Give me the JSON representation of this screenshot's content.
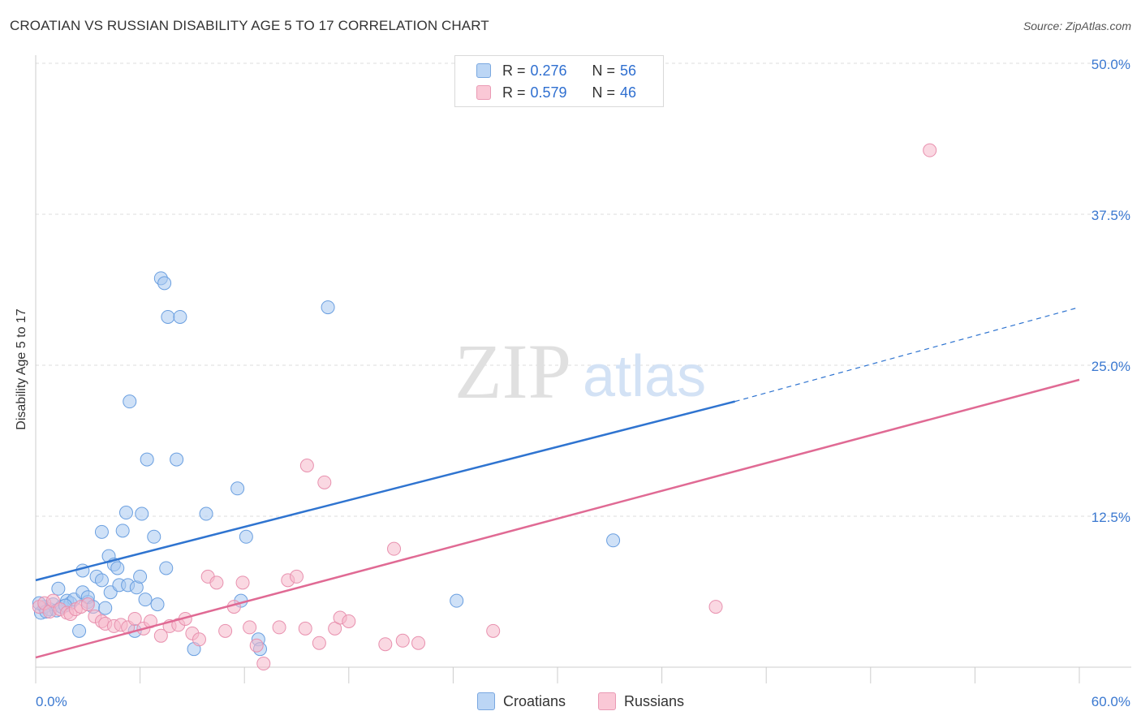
{
  "title": "CROATIAN VS RUSSIAN DISABILITY AGE 5 TO 17 CORRELATION CHART",
  "source": "Source: ZipAtlas.com",
  "watermark": {
    "zip": "ZIP",
    "atlas": "atlas"
  },
  "legend": {
    "r_label": "R = ",
    "n_label": "N = ",
    "croatians": {
      "r": "0.276",
      "n": "56"
    },
    "russians": {
      "r": "0.579",
      "n": "46"
    }
  },
  "colors": {
    "croatians_fill": "#a8c8f0",
    "croatians_line": "#2f74d0",
    "russians_fill": "#f5b8cb",
    "russians_line": "#e06a94",
    "axis_text": "#3a78d0",
    "grid": "#dddddd"
  },
  "chart_data": {
    "type": "scatter",
    "title": "CROATIAN VS RUSSIAN DISABILITY AGE 5 TO 17 CORRELATION CHART",
    "xlabel": "",
    "ylabel": "Disability Age 5 to 17",
    "xlim": [
      0,
      60
    ],
    "ylim": [
      0,
      50
    ],
    "x_tick_labels": [
      "0.0%",
      "60.0%"
    ],
    "y_ticks": [
      12.5,
      25.0,
      37.5,
      50.0
    ],
    "y_tick_labels": [
      "12.5%",
      "25.0%",
      "37.5%",
      "50.0%"
    ],
    "grid": true,
    "legend_position": "top-center",
    "series": [
      {
        "name": "Croatians",
        "color": "#a8c8f0",
        "trend": {
          "x": [
            0,
            40.2
          ],
          "y": [
            7.2,
            22.0
          ],
          "dashed_to": [
            60,
            29.8
          ]
        },
        "points": [
          [
            0.3,
            4.5
          ],
          [
            0.5,
            5.0
          ],
          [
            0.8,
            4.8
          ],
          [
            1.0,
            5.2
          ],
          [
            1.2,
            4.7
          ],
          [
            1.3,
            6.5
          ],
          [
            1.5,
            5.0
          ],
          [
            1.8,
            5.5
          ],
          [
            2.0,
            5.3
          ],
          [
            2.2,
            5.6
          ],
          [
            2.5,
            3.0
          ],
          [
            2.7,
            6.2
          ],
          [
            2.7,
            8.0
          ],
          [
            3.0,
            5.4
          ],
          [
            3.0,
            5.8
          ],
          [
            3.3,
            5.0
          ],
          [
            3.5,
            7.5
          ],
          [
            3.8,
            11.2
          ],
          [
            3.8,
            7.2
          ],
          [
            4.0,
            4.9
          ],
          [
            4.2,
            9.2
          ],
          [
            4.3,
            6.2
          ],
          [
            4.5,
            8.5
          ],
          [
            4.7,
            8.2
          ],
          [
            4.8,
            6.8
          ],
          [
            5.0,
            11.3
          ],
          [
            5.2,
            12.8
          ],
          [
            5.3,
            6.8
          ],
          [
            5.4,
            22.0
          ],
          [
            5.7,
            3.0
          ],
          [
            5.8,
            6.6
          ],
          [
            6.0,
            7.5
          ],
          [
            6.1,
            12.7
          ],
          [
            6.3,
            5.6
          ],
          [
            6.4,
            17.2
          ],
          [
            6.8,
            10.8
          ],
          [
            7.0,
            5.2
          ],
          [
            7.2,
            32.2
          ],
          [
            7.4,
            31.8
          ],
          [
            7.5,
            8.2
          ],
          [
            7.6,
            29.0
          ],
          [
            8.1,
            17.2
          ],
          [
            8.3,
            29.0
          ],
          [
            9.1,
            1.5
          ],
          [
            9.8,
            12.7
          ],
          [
            11.6,
            14.8
          ],
          [
            11.8,
            5.5
          ],
          [
            12.1,
            10.8
          ],
          [
            12.8,
            2.3
          ],
          [
            12.9,
            1.5
          ],
          [
            16.8,
            29.8
          ],
          [
            24.2,
            5.5
          ],
          [
            33.2,
            10.5
          ],
          [
            0.2,
            5.3
          ],
          [
            0.6,
            4.6
          ],
          [
            1.7,
            5.1
          ]
        ]
      },
      {
        "name": "Russians",
        "color": "#f5b8cb",
        "trend": {
          "x": [
            0,
            60
          ],
          "y": [
            0.8,
            23.8
          ]
        },
        "points": [
          [
            0.2,
            5.0
          ],
          [
            0.5,
            5.3
          ],
          [
            0.8,
            4.6
          ],
          [
            1.0,
            5.5
          ],
          [
            1.4,
            4.8
          ],
          [
            1.8,
            4.5
          ],
          [
            2.0,
            4.4
          ],
          [
            2.3,
            4.8
          ],
          [
            2.6,
            5.0
          ],
          [
            3.0,
            5.2
          ],
          [
            3.4,
            4.2
          ],
          [
            3.8,
            3.8
          ],
          [
            4.0,
            3.6
          ],
          [
            4.5,
            3.4
          ],
          [
            4.9,
            3.5
          ],
          [
            5.3,
            3.3
          ],
          [
            5.7,
            4.0
          ],
          [
            6.2,
            3.2
          ],
          [
            6.6,
            3.8
          ],
          [
            7.2,
            2.6
          ],
          [
            7.7,
            3.4
          ],
          [
            8.2,
            3.5
          ],
          [
            8.6,
            4.0
          ],
          [
            9.0,
            2.8
          ],
          [
            9.4,
            2.3
          ],
          [
            9.9,
            7.5
          ],
          [
            10.4,
            7.0
          ],
          [
            10.9,
            3.0
          ],
          [
            11.4,
            5.0
          ],
          [
            11.9,
            7.0
          ],
          [
            12.3,
            3.3
          ],
          [
            12.7,
            1.8
          ],
          [
            13.1,
            0.3
          ],
          [
            14.0,
            3.3
          ],
          [
            14.5,
            7.2
          ],
          [
            15.0,
            7.5
          ],
          [
            15.5,
            3.2
          ],
          [
            15.6,
            16.7
          ],
          [
            16.3,
            2.0
          ],
          [
            16.6,
            15.3
          ],
          [
            17.2,
            3.2
          ],
          [
            17.5,
            4.1
          ],
          [
            18.0,
            3.8
          ],
          [
            20.1,
            1.9
          ],
          [
            21.1,
            2.2
          ],
          [
            22.0,
            2.0
          ]
        ],
        "extra_points": [
          [
            20.6,
            9.8
          ],
          [
            26.3,
            3.0
          ],
          [
            39.1,
            5.0
          ],
          [
            51.4,
            42.8
          ]
        ]
      }
    ]
  }
}
